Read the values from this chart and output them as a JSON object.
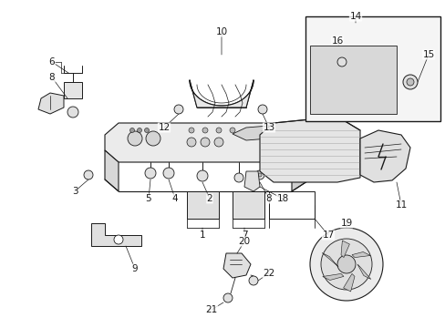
{
  "bg_color": "#ffffff",
  "dk": "#1a1a1a",
  "gray_fill": "#e8e8e8",
  "gray_fill2": "#d8d8d8",
  "gray_fill3": "#cccccc",
  "box_fill": "#f0f0f0",
  "fig_width": 4.89,
  "fig_height": 3.6,
  "dpi": 100
}
